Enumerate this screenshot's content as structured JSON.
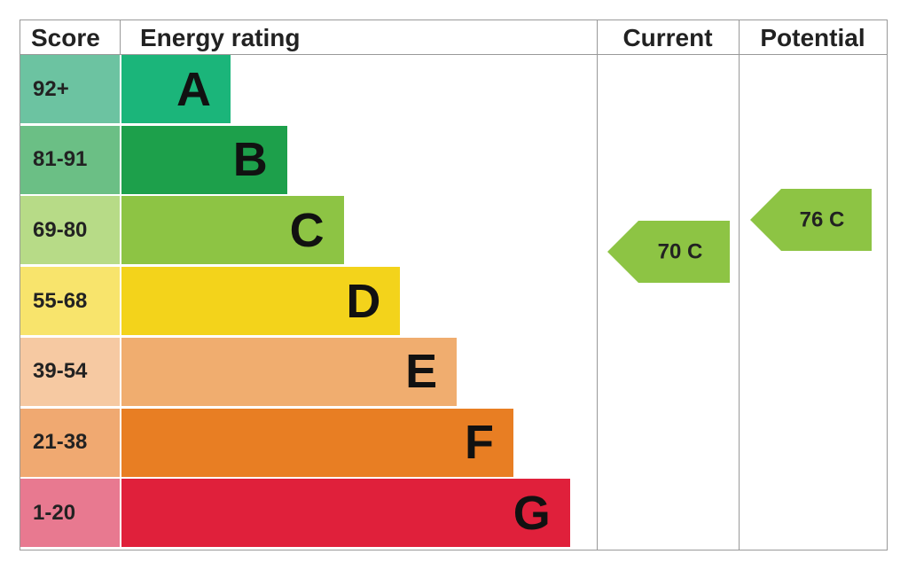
{
  "header": {
    "score": "Score",
    "energy_rating": "Energy rating",
    "current": "Current",
    "potential": "Potential"
  },
  "bands": [
    {
      "score": "92+",
      "letter": "A",
      "color": "#1bb57a",
      "score_color": "#6cc3a1"
    },
    {
      "score": "81-91",
      "letter": "B",
      "color": "#1da04b",
      "score_color": "#6bbf85"
    },
    {
      "score": "69-80",
      "letter": "C",
      "color": "#8dc444",
      "score_color": "#b7db87"
    },
    {
      "score": "55-68",
      "letter": "D",
      "color": "#f3d31b",
      "score_color": "#f8e46c"
    },
    {
      "score": "39-54",
      "letter": "E",
      "color": "#f0ad6f",
      "score_color": "#f6c9a2"
    },
    {
      "score": "21-38",
      "letter": "F",
      "color": "#e87e23",
      "score_color": "#f0a971"
    },
    {
      "score": "1-20",
      "letter": "G",
      "color": "#e0203b",
      "score_color": "#e87990"
    }
  ],
  "current": {
    "label": "70 C",
    "color": "#8dc444"
  },
  "potential": {
    "label": "76 C",
    "color": "#8dc444"
  }
}
